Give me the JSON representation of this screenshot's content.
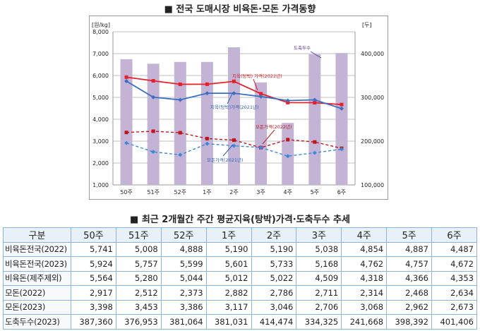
{
  "chart_title": "■ 전국 도매시장 비육돈·모돈 가격동향",
  "table_title": "■ 최근 2개월간 주간 평균지육(탕박)가격·도축두수 추세",
  "chart_data": {
    "type": "bar+line",
    "categories": [
      "50주",
      "51주",
      "52주",
      "1주",
      "2주",
      "3주",
      "4주",
      "5주",
      "6주"
    ],
    "y_left_unit": "[원/kg]",
    "y_right_unit": "[두]",
    "y_left_range": [
      1000,
      8000
    ],
    "y_right_range": [
      100000,
      450000
    ],
    "y_left_ticks": [
      "1,000",
      "2,000",
      "3,000",
      "4,000",
      "5,000",
      "6,000",
      "7,000",
      "8,000"
    ],
    "y_right_ticks": [
      "100,000",
      "200,000",
      "300,000",
      "400,000"
    ],
    "y_right_tick_values": [
      100000,
      200000,
      300000,
      400000
    ],
    "y_left_tick_values": [
      1000,
      2000,
      3000,
      4000,
      5000,
      6000,
      7000,
      8000
    ],
    "bars": {
      "name": "도축두수",
      "values": [
        387360,
        376953,
        381064,
        381031,
        414474,
        334325,
        241668,
        398392,
        401406
      ],
      "color": "#c3b4d6"
    },
    "series": [
      {
        "name": "지육(탕박) 가격(2022년)",
        "values": [
          5924,
          5757,
          5599,
          5601,
          5733,
          5168,
          4762,
          4757,
          4672
        ],
        "color": "#e8202a",
        "style": "solid",
        "marker": "square"
      },
      {
        "name": "지육(탕박)가격(2021년)",
        "values": [
          5741,
          5008,
          4888,
          5190,
          5190,
          5038,
          4854,
          4887,
          4487
        ],
        "color": "#3c6fc0",
        "style": "solid",
        "marker": "diamond"
      },
      {
        "name": "모돈가격(2022년)",
        "values": [
          3398,
          3453,
          3386,
          3117,
          3046,
          2706,
          3068,
          2962,
          2673
        ],
        "color": "#c0141c",
        "style": "dashed",
        "marker": "square"
      },
      {
        "name": "모돈가격(2021년)",
        "values": [
          2917,
          2512,
          2373,
          2882,
          2786,
          2711,
          2314,
          2468,
          2634
        ],
        "color": "#3c88d8",
        "style": "dashed",
        "marker": "diamond"
      }
    ],
    "annotations": [
      "지육(탕박) 가격(2022년)",
      "지육(탕박)가격(2021년)",
      "모돈가격(2022년)",
      "모돈가격(2021년)",
      "도축두수"
    ]
  },
  "table": {
    "header": [
      "구분",
      "50주",
      "51주",
      "52주",
      "1주",
      "2주",
      "3주",
      "4주",
      "5주",
      "6주"
    ],
    "rows": [
      {
        "label": "비육돈전국(2022)",
        "values": [
          "5,741",
          "5,008",
          "4,888",
          "5,190",
          "5,190",
          "5,038",
          "4,854",
          "4,887",
          "4,487"
        ]
      },
      {
        "label": "비육돈전국(2023)",
        "values": [
          "5,924",
          "5,757",
          "5,599",
          "5,601",
          "5,733",
          "5,168",
          "4,762",
          "4,757",
          "4,672"
        ]
      },
      {
        "label": "비육돈(제주제외)",
        "values": [
          "5,564",
          "5,280",
          "5,044",
          "5,012",
          "5,022",
          "4,509",
          "4,318",
          "4,366",
          "4,353"
        ]
      },
      {
        "label": "모돈(2022)",
        "values": [
          "2,917",
          "2,512",
          "2,373",
          "2,882",
          "2,786",
          "2,711",
          "2,314",
          "2,468",
          "2,634"
        ]
      },
      {
        "label": "모돈(2023)",
        "values": [
          "3,398",
          "3,453",
          "3,386",
          "3,117",
          "3,046",
          "2,706",
          "3,068",
          "2,962",
          "2,673"
        ]
      },
      {
        "label": "도축두수(2023)",
        "values": [
          "387,360",
          "376,953",
          "381,064",
          "381,031",
          "414,474",
          "334,325",
          "241,668",
          "398,392",
          "401,406"
        ]
      }
    ]
  }
}
